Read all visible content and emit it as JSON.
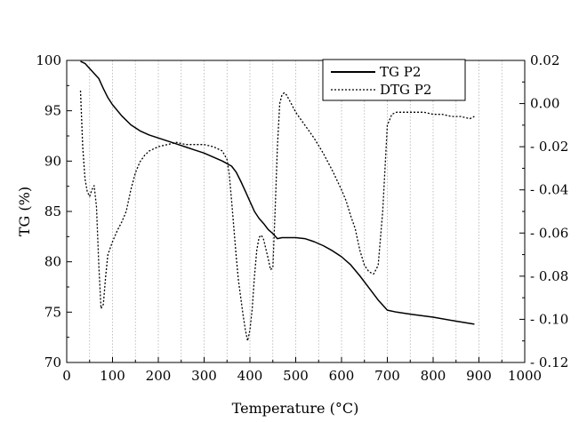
{
  "chart_data": {
    "type": "line",
    "xlabel": "Temperature (°C)",
    "ylabel": "TG (%)",
    "y2label": "",
    "xlim": [
      0,
      1000
    ],
    "ylim": [
      70,
      100
    ],
    "y2lim": [
      -0.12,
      0.02
    ],
    "x_ticks": [
      "0",
      "100",
      "200",
      "300",
      "400",
      "500",
      "600",
      "700",
      "800",
      "900",
      "1000"
    ],
    "y_ticks": [
      "70",
      "75",
      "80",
      "85",
      "90",
      "95",
      "100"
    ],
    "y2_ticks": [
      "- 0.12",
      "- 0.10",
      "- 0.08",
      "- 0.06",
      "- 0.04",
      "- 0.02",
      "0.00",
      "0.02"
    ],
    "grid": "vertical dotted lines every 50",
    "legend_position": "top-right",
    "series": [
      {
        "name": "TG P2",
        "axis": "left",
        "style": "solid",
        "x": [
          30,
          40,
          50,
          60,
          70,
          80,
          90,
          100,
          120,
          140,
          160,
          180,
          200,
          220,
          240,
          260,
          280,
          300,
          320,
          340,
          360,
          370,
          380,
          390,
          400,
          410,
          420,
          430,
          440,
          450,
          460,
          470,
          480,
          500,
          520,
          540,
          560,
          580,
          600,
          620,
          640,
          660,
          680,
          700,
          720,
          750,
          800,
          850,
          890
        ],
        "y": [
          99.9,
          99.7,
          99.2,
          98.7,
          98.2,
          97.2,
          96.3,
          95.6,
          94.5,
          93.6,
          93.0,
          92.6,
          92.3,
          92.0,
          91.7,
          91.4,
          91.1,
          90.8,
          90.4,
          90.0,
          89.5,
          88.9,
          88.0,
          87.0,
          86.0,
          85.0,
          84.3,
          83.8,
          83.2,
          82.8,
          82.3,
          82.4,
          82.4,
          82.4,
          82.3,
          82.0,
          81.6,
          81.1,
          80.5,
          79.7,
          78.6,
          77.4,
          76.2,
          75.2,
          75.0,
          74.8,
          74.5,
          74.1,
          73.8
        ]
      },
      {
        "name": "DTG P2",
        "axis": "right",
        "style": "dotted",
        "x": [
          30,
          35,
          40,
          45,
          50,
          55,
          60,
          65,
          70,
          75,
          80,
          85,
          90,
          95,
          100,
          110,
          120,
          130,
          140,
          150,
          160,
          170,
          180,
          200,
          220,
          240,
          260,
          280,
          300,
          320,
          340,
          350,
          355,
          360,
          365,
          370,
          375,
          380,
          385,
          390,
          395,
          400,
          405,
          410,
          415,
          420,
          425,
          430,
          440,
          445,
          450,
          455,
          460,
          465,
          470,
          475,
          480,
          490,
          500,
          520,
          540,
          560,
          580,
          600,
          610,
          620,
          630,
          640,
          650,
          660,
          670,
          680,
          690,
          700,
          710,
          720,
          740,
          760,
          780,
          800,
          820,
          840,
          860,
          880,
          890
        ],
        "y": [
          0.006,
          -0.02,
          -0.035,
          -0.041,
          -0.043,
          -0.04,
          -0.038,
          -0.048,
          -0.075,
          -0.095,
          -0.093,
          -0.08,
          -0.07,
          -0.067,
          -0.064,
          -0.059,
          -0.055,
          -0.05,
          -0.04,
          -0.032,
          -0.027,
          -0.024,
          -0.022,
          -0.02,
          -0.019,
          -0.018,
          -0.019,
          -0.019,
          -0.019,
          -0.02,
          -0.022,
          -0.026,
          -0.033,
          -0.045,
          -0.058,
          -0.071,
          -0.082,
          -0.09,
          -0.098,
          -0.105,
          -0.11,
          -0.105,
          -0.095,
          -0.08,
          -0.068,
          -0.062,
          -0.061,
          -0.063,
          -0.072,
          -0.077,
          -0.076,
          -0.05,
          -0.02,
          0.0,
          0.004,
          0.005,
          0.004,
          0.0,
          -0.004,
          -0.01,
          -0.016,
          -0.023,
          -0.031,
          -0.04,
          -0.045,
          -0.052,
          -0.058,
          -0.068,
          -0.075,
          -0.078,
          -0.079,
          -0.075,
          -0.05,
          -0.01,
          -0.005,
          -0.004,
          -0.004,
          -0.004,
          -0.004,
          -0.005,
          -0.005,
          -0.006,
          -0.006,
          -0.007,
          -0.006
        ]
      }
    ]
  }
}
